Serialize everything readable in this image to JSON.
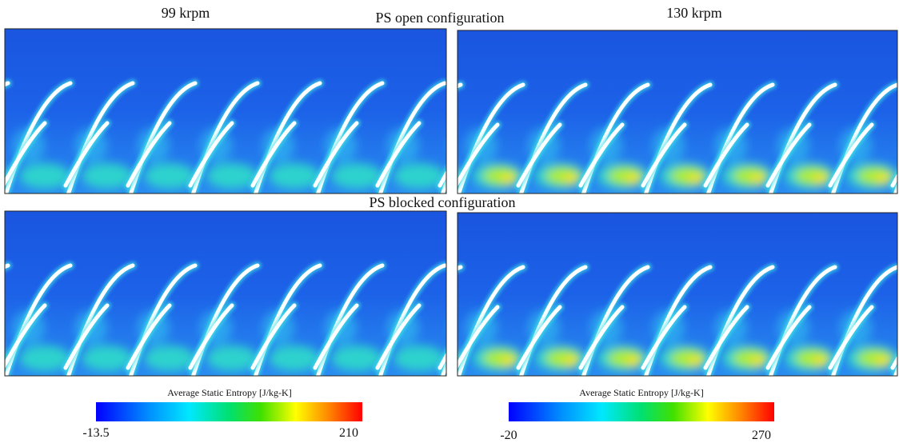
{
  "titles": {
    "left": "99 krpm",
    "center_top": "PS open configuration",
    "right": "130 krpm",
    "center_middle": "PS blocked configuration"
  },
  "colorbars": [
    {
      "label": "Average Static Entropy [J/kg-K]",
      "min": -13.5,
      "max": 210
    },
    {
      "label": "Average Static Entropy [J/kg-K]",
      "min": -20,
      "max": 270
    }
  ]
}
